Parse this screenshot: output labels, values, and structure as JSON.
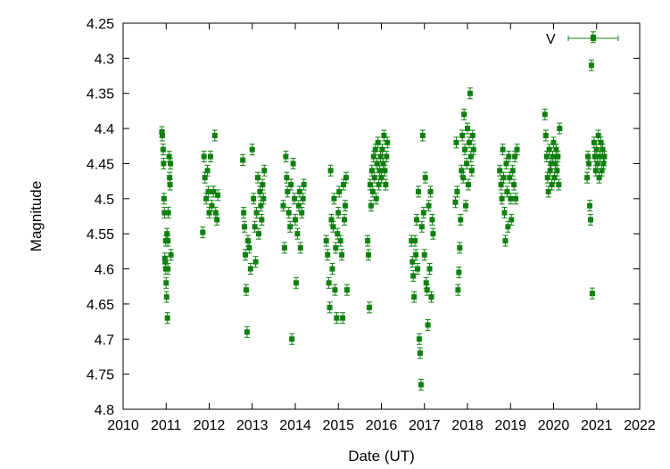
{
  "chart_data": {
    "type": "scatter",
    "title": "",
    "xlabel": "Date (UT)",
    "ylabel": "Magnitude",
    "xlim": [
      2010,
      2022
    ],
    "ylim": [
      4.25,
      4.8
    ],
    "y_inverted": true,
    "x_ticks": [
      "2010",
      "2011",
      "2012",
      "2013",
      "2014",
      "2015",
      "2016",
      "2017",
      "2018",
      "2019",
      "2020",
      "2021",
      "2022"
    ],
    "y_ticks": [
      "4.25",
      "4.3",
      "4.35",
      "4.4",
      "4.45",
      "4.5",
      "4.55",
      "4.6",
      "4.65",
      "4.7",
      "4.75",
      "4.8"
    ],
    "grid": false,
    "legend_position": "top-right",
    "colors": {
      "series": "#108010",
      "axis": "#000000",
      "background": "#ffffff"
    },
    "series": [
      {
        "name": "V",
        "marker": "square",
        "error_bars": true,
        "points": [
          [
            2010.9,
            4.405
          ],
          [
            2010.91,
            4.41
          ],
          [
            2010.93,
            4.43
          ],
          [
            2010.94,
            4.45
          ],
          [
            2010.95,
            4.5
          ],
          [
            2010.96,
            4.52
          ],
          [
            2010.97,
            4.585
          ],
          [
            2010.98,
            4.59
          ],
          [
            2010.99,
            4.6
          ],
          [
            2011.0,
            4.62
          ],
          [
            2011.01,
            4.64
          ],
          [
            2011.02,
            4.55
          ],
          [
            2011.03,
            4.67
          ],
          [
            2011.04,
            4.56
          ],
          [
            2011.05,
            4.52
          ],
          [
            2011.07,
            4.44
          ],
          [
            2011.08,
            4.47
          ],
          [
            2011.09,
            4.48
          ],
          [
            2011.1,
            4.45
          ],
          [
            2011.11,
            4.58
          ],
          [
            2010.99,
            4.56
          ],
          [
            2011.04,
            4.6
          ],
          [
            2011.85,
            4.548
          ],
          [
            2011.88,
            4.44
          ],
          [
            2011.9,
            4.47
          ],
          [
            2011.93,
            4.5
          ],
          [
            2011.96,
            4.46
          ],
          [
            2011.98,
            4.49
          ],
          [
            2012.0,
            4.52
          ],
          [
            2012.03,
            4.44
          ],
          [
            2012.06,
            4.51
          ],
          [
            2012.1,
            4.49
          ],
          [
            2012.13,
            4.41
          ],
          [
            2012.15,
            4.52
          ],
          [
            2012.18,
            4.53
          ],
          [
            2012.2,
            4.495
          ],
          [
            2012.78,
            4.445
          ],
          [
            2012.8,
            4.52
          ],
          [
            2012.82,
            4.54
          ],
          [
            2012.84,
            4.58
          ],
          [
            2012.86,
            4.63
          ],
          [
            2012.88,
            4.69
          ],
          [
            2012.9,
            4.56
          ],
          [
            2012.93,
            4.57
          ],
          [
            2012.96,
            4.6
          ],
          [
            2013.0,
            4.43
          ],
          [
            2013.03,
            4.5
          ],
          [
            2013.06,
            4.54
          ],
          [
            2013.08,
            4.59
          ],
          [
            2013.1,
            4.52
          ],
          [
            2013.13,
            4.47
          ],
          [
            2013.15,
            4.55
          ],
          [
            2013.18,
            4.49
          ],
          [
            2013.2,
            4.51
          ],
          [
            2013.22,
            4.53
          ],
          [
            2013.24,
            4.48
          ],
          [
            2013.26,
            4.5
          ],
          [
            2013.28,
            4.46
          ],
          [
            2013.72,
            4.51
          ],
          [
            2013.75,
            4.57
          ],
          [
            2013.78,
            4.44
          ],
          [
            2013.8,
            4.47
          ],
          [
            2013.82,
            4.49
          ],
          [
            2013.85,
            4.52
          ],
          [
            2013.88,
            4.54
          ],
          [
            2013.9,
            4.48
          ],
          [
            2013.92,
            4.7
          ],
          [
            2013.95,
            4.45
          ],
          [
            2013.98,
            4.5
          ],
          [
            2014.0,
            4.53
          ],
          [
            2014.02,
            4.62
          ],
          [
            2014.05,
            4.55
          ],
          [
            2014.08,
            4.51
          ],
          [
            2014.1,
            4.49
          ],
          [
            2014.12,
            4.57
          ],
          [
            2014.15,
            4.52
          ],
          [
            2014.18,
            4.5
          ],
          [
            2014.2,
            4.48
          ],
          [
            2014.72,
            4.56
          ],
          [
            2014.75,
            4.58
          ],
          [
            2014.78,
            4.62
          ],
          [
            2014.8,
            4.655
          ],
          [
            2014.82,
            4.46
          ],
          [
            2014.84,
            4.53
          ],
          [
            2014.86,
            4.6
          ],
          [
            2014.88,
            4.54
          ],
          [
            2014.9,
            4.5
          ],
          [
            2014.92,
            4.63
          ],
          [
            2014.94,
            4.57
          ],
          [
            2014.96,
            4.67
          ],
          [
            2014.98,
            4.55
          ],
          [
            2015.0,
            4.52
          ],
          [
            2015.02,
            4.49
          ],
          [
            2015.05,
            4.56
          ],
          [
            2015.08,
            4.58
          ],
          [
            2015.1,
            4.67
          ],
          [
            2015.12,
            4.48
          ],
          [
            2015.14,
            4.53
          ],
          [
            2015.16,
            4.51
          ],
          [
            2015.18,
            4.47
          ],
          [
            2015.2,
            4.63
          ],
          [
            2015.68,
            4.56
          ],
          [
            2015.7,
            4.58
          ],
          [
            2015.72,
            4.655
          ],
          [
            2015.74,
            4.48
          ],
          [
            2015.76,
            4.51
          ],
          [
            2015.78,
            4.46
          ],
          [
            2015.8,
            4.49
          ],
          [
            2015.82,
            4.44
          ],
          [
            2015.84,
            4.47
          ],
          [
            2015.86,
            4.43
          ],
          [
            2015.88,
            4.5
          ],
          [
            2015.9,
            4.45
          ],
          [
            2015.92,
            4.42
          ],
          [
            2015.94,
            4.48
          ],
          [
            2015.96,
            4.46
          ],
          [
            2015.98,
            4.44
          ],
          [
            2016.0,
            4.47
          ],
          [
            2016.02,
            4.43
          ],
          [
            2016.04,
            4.45
          ],
          [
            2016.06,
            4.41
          ],
          [
            2016.08,
            4.46
          ],
          [
            2016.1,
            4.48
          ],
          [
            2016.12,
            4.44
          ],
          [
            2016.14,
            4.42
          ],
          [
            2016.7,
            4.56
          ],
          [
            2016.72,
            4.59
          ],
          [
            2016.74,
            4.61
          ],
          [
            2016.76,
            4.64
          ],
          [
            2016.78,
            4.56
          ],
          [
            2016.8,
            4.58
          ],
          [
            2016.82,
            4.53
          ],
          [
            2016.84,
            4.6
          ],
          [
            2016.86,
            4.49
          ],
          [
            2016.88,
            4.7
          ],
          [
            2016.9,
            4.72
          ],
          [
            2016.92,
            4.765
          ],
          [
            2016.94,
            4.54
          ],
          [
            2016.96,
            4.41
          ],
          [
            2016.98,
            4.52
          ],
          [
            2017.0,
            4.58
          ],
          [
            2017.02,
            4.47
          ],
          [
            2017.04,
            4.62
          ],
          [
            2017.06,
            4.63
          ],
          [
            2017.08,
            4.68
          ],
          [
            2017.1,
            4.51
          ],
          [
            2017.12,
            4.6
          ],
          [
            2017.14,
            4.49
          ],
          [
            2017.16,
            4.64
          ],
          [
            2017.18,
            4.53
          ],
          [
            2017.2,
            4.55
          ],
          [
            2017.72,
            4.505
          ],
          [
            2017.74,
            4.42
          ],
          [
            2017.76,
            4.49
          ],
          [
            2017.78,
            4.63
          ],
          [
            2017.8,
            4.605
          ],
          [
            2017.82,
            4.57
          ],
          [
            2017.84,
            4.53
          ],
          [
            2017.86,
            4.46
          ],
          [
            2017.88,
            4.41
          ],
          [
            2017.9,
            4.47
          ],
          [
            2017.92,
            4.38
          ],
          [
            2017.94,
            4.43
          ],
          [
            2017.96,
            4.51
          ],
          [
            2017.98,
            4.45
          ],
          [
            2018.0,
            4.4
          ],
          [
            2018.02,
            4.48
          ],
          [
            2018.04,
            4.42
          ],
          [
            2018.06,
            4.35
          ],
          [
            2018.08,
            4.44
          ],
          [
            2018.1,
            4.46
          ],
          [
            2018.12,
            4.41
          ],
          [
            2018.14,
            4.43
          ],
          [
            2018.75,
            4.46
          ],
          [
            2018.78,
            4.48
          ],
          [
            2018.8,
            4.5
          ],
          [
            2018.82,
            4.43
          ],
          [
            2018.84,
            4.47
          ],
          [
            2018.86,
            4.52
          ],
          [
            2018.88,
            4.56
          ],
          [
            2018.9,
            4.45
          ],
          [
            2018.92,
            4.49
          ],
          [
            2018.94,
            4.54
          ],
          [
            2018.96,
            4.44
          ],
          [
            2018.98,
            4.47
          ],
          [
            2019.0,
            4.5
          ],
          [
            2019.02,
            4.53
          ],
          [
            2019.05,
            4.46
          ],
          [
            2019.08,
            4.48
          ],
          [
            2019.1,
            4.44
          ],
          [
            2019.12,
            4.5
          ],
          [
            2019.15,
            4.43
          ],
          [
            2019.8,
            4.38
          ],
          [
            2019.82,
            4.41
          ],
          [
            2019.84,
            4.44
          ],
          [
            2019.86,
            4.47
          ],
          [
            2019.88,
            4.49
          ],
          [
            2019.9,
            4.43
          ],
          [
            2019.92,
            4.46
          ],
          [
            2019.94,
            4.45
          ],
          [
            2019.96,
            4.48
          ],
          [
            2019.98,
            4.44
          ],
          [
            2020.0,
            4.42
          ],
          [
            2020.02,
            4.47
          ],
          [
            2020.04,
            4.45
          ],
          [
            2020.06,
            4.43
          ],
          [
            2020.08,
            4.46
          ],
          [
            2020.1,
            4.44
          ],
          [
            2020.12,
            4.48
          ],
          [
            2020.14,
            4.4
          ],
          [
            2020.78,
            4.47
          ],
          [
            2020.8,
            4.44
          ],
          [
            2020.82,
            4.45
          ],
          [
            2020.84,
            4.51
          ],
          [
            2020.86,
            4.53
          ],
          [
            2020.88,
            4.31
          ],
          [
            2020.9,
            4.635
          ],
          [
            2020.92,
            4.27
          ],
          [
            2020.94,
            4.42
          ],
          [
            2020.96,
            4.44
          ],
          [
            2020.98,
            4.46
          ],
          [
            2021.0,
            4.43
          ],
          [
            2021.02,
            4.45
          ],
          [
            2021.04,
            4.41
          ],
          [
            2021.06,
            4.47
          ],
          [
            2021.08,
            4.44
          ],
          [
            2021.1,
            4.42
          ],
          [
            2021.12,
            4.46
          ],
          [
            2021.14,
            4.43
          ],
          [
            2021.16,
            4.45
          ],
          [
            2021.18,
            4.44
          ]
        ]
      }
    ]
  }
}
